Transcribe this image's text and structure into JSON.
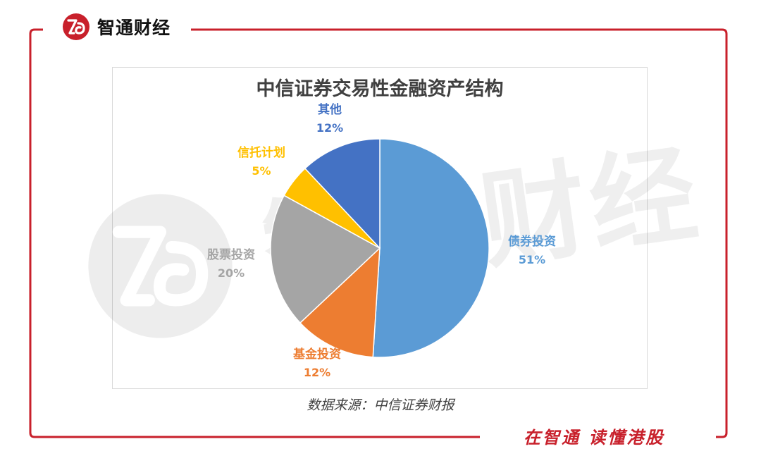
{
  "brand": {
    "name": "智通财经",
    "watermark": "智通财经",
    "accent": "#c8202b"
  },
  "source": "数据来源：中信证券财报",
  "slogan": "在智通  读懂港股",
  "chart_data": {
    "type": "pie",
    "title": "中信证券交易性金融资产结构",
    "start_angle_deg": 0,
    "direction": "clockwise",
    "slices": [
      {
        "label": "债券投资",
        "value": 51,
        "value_label": "51%",
        "color": "#5b9bd5"
      },
      {
        "label": "基金投资",
        "value": 12,
        "value_label": "12%",
        "color": "#ed7d31"
      },
      {
        "label": "股票投资",
        "value": 20,
        "value_label": "20%",
        "color": "#a5a5a5"
      },
      {
        "label": "信托计划",
        "value": 5,
        "value_label": "5%",
        "color": "#ffc000"
      },
      {
        "label": "其他",
        "value": 12,
        "value_label": "12%",
        "color": "#4472c4"
      }
    ]
  }
}
